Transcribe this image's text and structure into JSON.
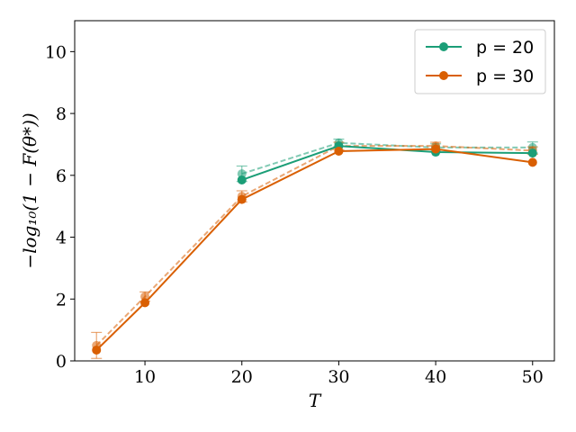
{
  "chart_data": {
    "type": "line",
    "xlabel": "T",
    "ylabel": "−log₁₀(1 − F(θ*))",
    "xlim": [
      2.75,
      52.25
    ],
    "ylim": [
      0,
      11
    ],
    "x_ticks": [
      10,
      20,
      30,
      40,
      50
    ],
    "y_ticks": [
      0,
      2,
      4,
      6,
      8,
      10
    ],
    "grid": false,
    "legend_position": "top-right",
    "series": [
      {
        "name": "p = 20",
        "color": "#1b9e77",
        "solid": {
          "x": [
            20,
            30,
            40,
            50
          ],
          "y": [
            5.85,
            6.95,
            6.75,
            6.72
          ]
        },
        "dashed": {
          "x": [
            20,
            30,
            40,
            50
          ],
          "y": [
            6.05,
            7.05,
            6.9,
            6.9
          ],
          "err": [
            0.25,
            0.12,
            0.12,
            0.18
          ]
        }
      },
      {
        "name": "p = 30",
        "color": "#d95f02",
        "solid": {
          "x": [
            5,
            10,
            20,
            30,
            40,
            50
          ],
          "y": [
            0.35,
            1.88,
            5.22,
            6.78,
            6.85,
            6.42
          ]
        },
        "dashed": {
          "x": [
            5,
            10,
            20,
            30,
            40,
            50
          ],
          "y": [
            0.5,
            2.08,
            5.32,
            6.95,
            6.95,
            6.8
          ],
          "err": [
            0.42,
            0.15,
            0.18,
            0.12,
            0.12,
            0.12
          ]
        }
      }
    ]
  }
}
